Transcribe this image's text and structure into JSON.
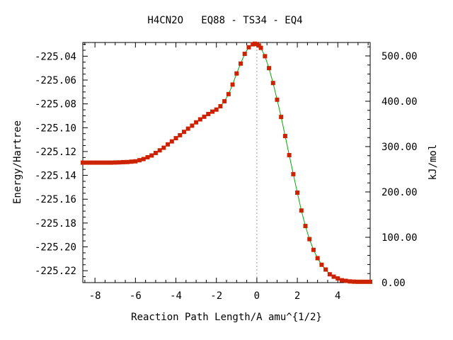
{
  "chart_data": {
    "type": "line",
    "title": "H4CN2O   EQ88 - TS34 - EQ4",
    "xlabel": "Reaction Path Length/A amu^{1/2}",
    "ylabel": "Energy/Hartree",
    "y2label": "kJ/mol",
    "xlim": [
      -8.6,
      5.6
    ],
    "ylim": [
      -225.23,
      -225.0285
    ],
    "y2lim": [
      0.0,
      529.61
    ],
    "x_ticks": [
      "-8",
      "-6",
      "-4",
      "-2",
      "0",
      "2",
      "4"
    ],
    "x_tick_values": [
      -8,
      -6,
      -4,
      -2,
      0,
      2,
      4
    ],
    "y_ticks": [
      "-225.04",
      "-225.06",
      "-225.08",
      "-225.10",
      "-225.12",
      "-225.14",
      "-225.16",
      "-225.18",
      "-225.20",
      "-225.22"
    ],
    "y_tick_values": [
      -225.04,
      -225.06,
      -225.08,
      -225.1,
      -225.12,
      -225.14,
      -225.16,
      -225.18,
      -225.2,
      -225.22
    ],
    "y2_ticks": [
      "500.00",
      "400.00",
      "300.00",
      "200.00",
      "100.00",
      "0.00"
    ],
    "y2_tick_values": [
      500,
      400,
      300,
      200,
      100,
      0
    ],
    "ts_marker_x": 0.0,
    "line_color": "#00aa00",
    "marker_color": "#cc2200",
    "series": [
      {
        "x": [
          -8.6,
          -8.4,
          -8.2,
          -8.0,
          -7.8,
          -7.6,
          -7.4,
          -7.2,
          -7.0,
          -6.8,
          -6.6,
          -6.4,
          -6.2,
          -6.0,
          -5.8,
          -5.6,
          -5.4,
          -5.2,
          -5.0,
          -4.8,
          -4.6,
          -4.4,
          -4.2,
          -4.0,
          -3.8,
          -3.6,
          -3.4,
          -3.2,
          -3.0,
          -2.8,
          -2.6,
          -2.4,
          -2.2,
          -2.0,
          -1.8,
          -1.6,
          -1.4,
          -1.2,
          -1.0,
          -0.8,
          -0.6,
          -0.4,
          -0.2,
          -0.1,
          0.0,
          0.1,
          0.2,
          0.4,
          0.6,
          0.8,
          1.0,
          1.2,
          1.4,
          1.6,
          1.8,
          2.0,
          2.2,
          2.4,
          2.6,
          2.8,
          3.0,
          3.2,
          3.4,
          3.6,
          3.8,
          4.0,
          4.2,
          4.4,
          4.6,
          4.8,
          5.0,
          5.2,
          5.4,
          5.6
        ],
        "y": [
          -225.1293,
          -225.1293,
          -225.1293,
          -225.1293,
          -225.1293,
          -225.1293,
          -225.1293,
          -225.1293,
          -225.1292,
          -225.1291,
          -225.1289,
          -225.1288,
          -225.1285,
          -225.1282,
          -225.1273,
          -225.1263,
          -225.1248,
          -225.1233,
          -225.1212,
          -225.119,
          -225.1168,
          -225.114,
          -225.1115,
          -225.1088,
          -225.1063,
          -225.1035,
          -225.1008,
          -225.0983,
          -225.0955,
          -225.093,
          -225.0908,
          -225.0885,
          -225.0865,
          -225.0848,
          -225.082,
          -225.0778,
          -225.0718,
          -225.0638,
          -225.0545,
          -225.0462,
          -225.038,
          -225.0325,
          -225.03,
          -225.0295,
          -225.0298,
          -225.031,
          -225.033,
          -225.04,
          -225.05,
          -225.0625,
          -225.0765,
          -225.091,
          -225.107,
          -225.123,
          -225.139,
          -225.1545,
          -225.1695,
          -225.1825,
          -225.1935,
          -225.2025,
          -225.2095,
          -225.215,
          -225.219,
          -225.223,
          -225.225,
          -225.2265,
          -225.228,
          -225.2285,
          -225.229,
          -225.2292,
          -225.2293,
          -225.2293,
          -225.2293,
          -225.2293
        ]
      }
    ]
  }
}
